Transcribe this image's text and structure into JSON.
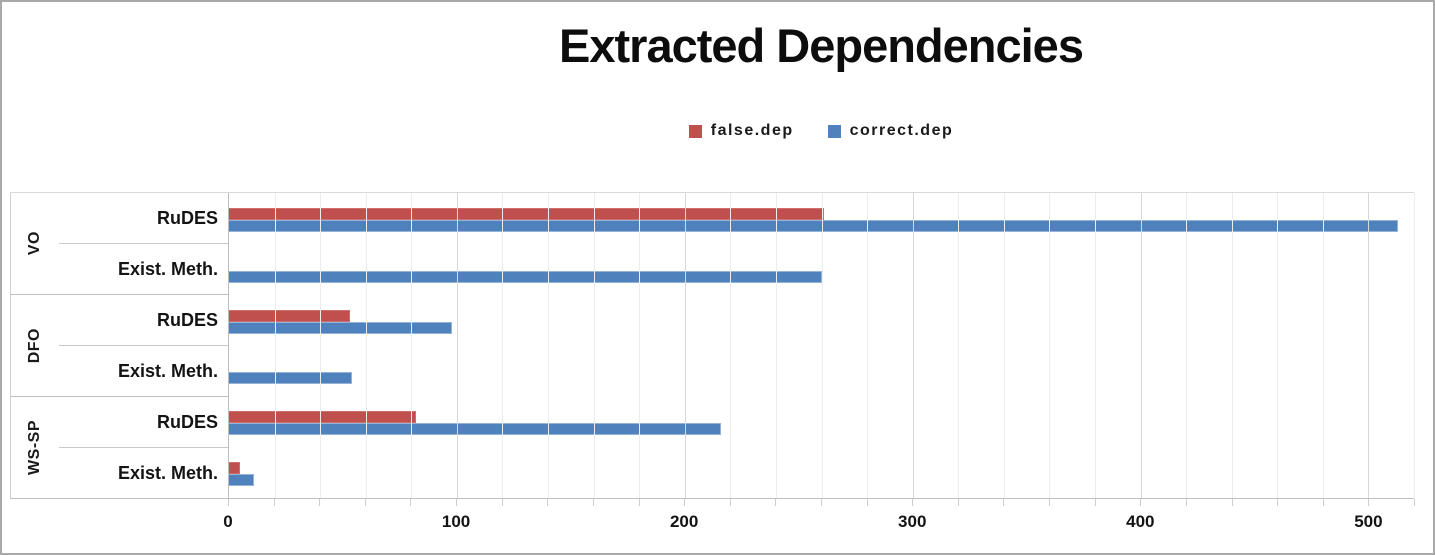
{
  "chart_data": {
    "type": "bar",
    "orientation": "horizontal",
    "title": "Extracted Dependencies",
    "legend_position": "top-center",
    "grid": "vertical-minor",
    "minor_grid_step": 20,
    "xlim": [
      0,
      520
    ],
    "x_ticks": [
      0,
      100,
      200,
      300,
      400,
      500
    ],
    "groups": [
      "VO",
      "DFO",
      "WS-SP"
    ],
    "categories": [
      "VO / RuDES",
      "VO / Exist. Meth.",
      "DFO / RuDES",
      "DFO / Exist. Meth.",
      "WS-SP / RuDES",
      "WS-SP / Exist. Meth."
    ],
    "rows": [
      {
        "group": "VO",
        "label": "RuDES",
        "false_dep": 261,
        "correct_dep": 513
      },
      {
        "group": "VO",
        "label": "Exist. Meth.",
        "false_dep": 0,
        "correct_dep": 260
      },
      {
        "group": "DFO",
        "label": "RuDES",
        "false_dep": 53,
        "correct_dep": 98
      },
      {
        "group": "DFO",
        "label": "Exist. Meth.",
        "false_dep": 0,
        "correct_dep": 54
      },
      {
        "group": "WS-SP",
        "label": "RuDES",
        "false_dep": 82,
        "correct_dep": 216
      },
      {
        "group": "WS-SP",
        "label": "Exist. Meth.",
        "false_dep": 5,
        "correct_dep": 11
      }
    ],
    "series": [
      {
        "name": "false.dep",
        "color": "#C0504D",
        "values": [
          261,
          0,
          53,
          0,
          82,
          5
        ]
      },
      {
        "name": "correct.dep",
        "color": "#4F81BD",
        "values": [
          513,
          260,
          98,
          54,
          216,
          11
        ]
      }
    ]
  },
  "colors": {
    "false_dep": "#C0504D",
    "correct_dep": "#4F81BD",
    "grid_minor": "#ededed",
    "grid_major": "#d8d8d8",
    "axis_line": "#bdbdbd",
    "text": "#141414"
  }
}
